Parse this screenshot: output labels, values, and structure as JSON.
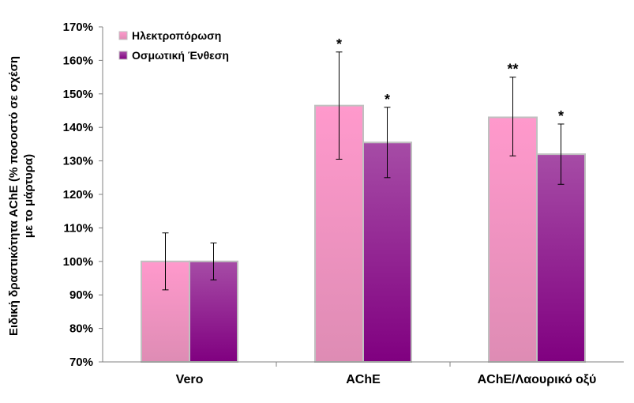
{
  "chart_data": {
    "type": "bar",
    "title": "",
    "ylabel_lines": [
      "Ειδική δραστικότητα AChE (% ποσοστό σε σχέση",
      "με το μάρτυρα)"
    ],
    "categories": [
      "Vero",
      "AChE",
      "AChE/Λαουρικό οξύ"
    ],
    "ylim": [
      70,
      170
    ],
    "y_ticks": [
      "70%",
      "80%",
      "90%",
      "100%",
      "110%",
      "120%",
      "130%",
      "140%",
      "150%",
      "160%",
      "170%"
    ],
    "series": [
      {
        "name": "Ηλεκτροπόρωση",
        "values": [
          100,
          146.5,
          143
        ],
        "err_low": [
          91.5,
          130.5,
          131.5
        ],
        "err_high": [
          108.5,
          162.5,
          155
        ],
        "significance": [
          "",
          "*",
          "**"
        ]
      },
      {
        "name": "Οσμωτική Ένθεση",
        "values": [
          100,
          135.5,
          132
        ],
        "err_low": [
          94.5,
          125,
          123
        ],
        "err_high": [
          105.5,
          146,
          141
        ],
        "significance": [
          "",
          "*",
          "*"
        ]
      }
    ],
    "legend_position": "top-left",
    "grid": false,
    "colors": {
      "series1_top": "#ff99cc",
      "series1_bottom": "#de8cb4",
      "series2_top": "#a64ca6",
      "series2_bottom": "#800080",
      "bar_border": "#c0c0c0"
    }
  }
}
